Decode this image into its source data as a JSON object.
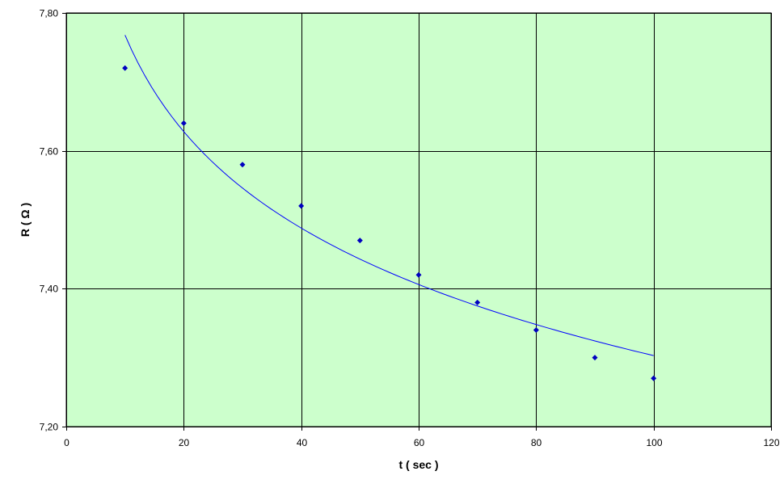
{
  "chart_data": {
    "type": "scatter",
    "title": "",
    "xlabel": "t ( sec )",
    "ylabel": "R ( Ω )",
    "xlim": [
      0,
      120
    ],
    "ylim": [
      7.2,
      7.8
    ],
    "xticks": [
      0,
      20,
      40,
      60,
      80,
      100,
      120
    ],
    "yticks": [
      7.2,
      7.4,
      7.6,
      7.8
    ],
    "xtick_labels": [
      "0",
      "20",
      "40",
      "60",
      "80",
      "100",
      "120"
    ],
    "ytick_labels": [
      "7,20",
      "7,40",
      "7,60",
      "7,80"
    ],
    "grid": true,
    "legend": "none",
    "series": [
      {
        "type": "scatter",
        "marker": "diamond",
        "x": [
          10,
          20,
          30,
          40,
          50,
          60,
          70,
          80,
          90,
          100
        ],
        "y": [
          7.72,
          7.64,
          7.58,
          7.52,
          7.47,
          7.42,
          7.38,
          7.34,
          7.3,
          7.27
        ]
      },
      {
        "type": "line",
        "trendline": "logarithmic",
        "x": [
          10,
          20,
          30,
          40,
          50,
          60,
          70,
          80,
          90,
          100
        ],
        "y": [
          7.77,
          7.627,
          7.546,
          7.486,
          7.441,
          7.405,
          7.375,
          7.348,
          7.326,
          7.305
        ]
      }
    ],
    "colors": {
      "plot_background": "#ccffcc",
      "grid": "#000000",
      "markers": "#0000c0",
      "trendline": "#0000ff",
      "page_background": "#ffffff"
    }
  }
}
